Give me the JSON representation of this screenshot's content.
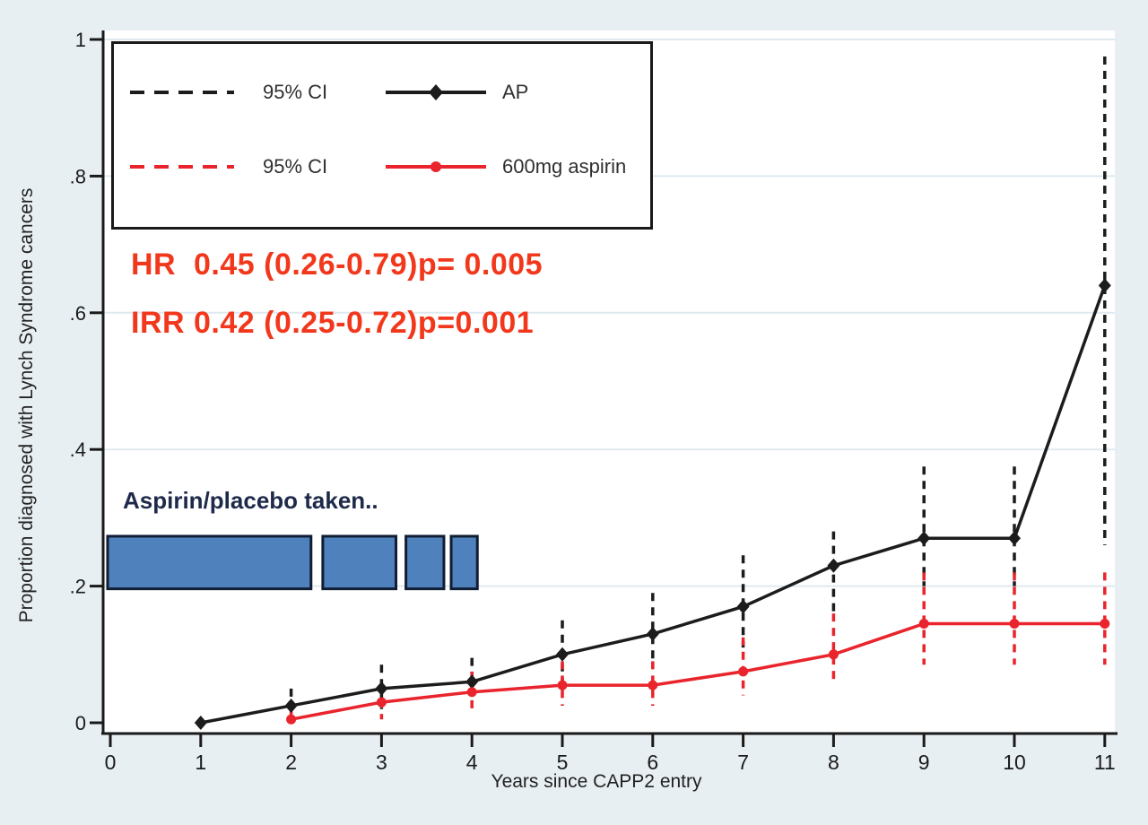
{
  "colors": {
    "background": "#e8eff2",
    "plot_bg": "#ffffff",
    "grid": "#dfeaf0",
    "axis": "#1a1a1a",
    "ap_series": "#1c1c1c",
    "aspirin_series": "#e9242c",
    "stats_text": "#f2381c",
    "bars_fill": "#4f81bd",
    "bars_stroke": "#111d33",
    "annotation_text": "#1e2a4a"
  },
  "legend": {
    "rows": [
      {
        "ci_label": "95% CI",
        "series_label": "AP"
      },
      {
        "ci_label": "95% CI",
        "series_label": "600mg aspirin"
      }
    ]
  },
  "annotations": {
    "stats_line1": "HR  0.45 (0.26-0.79)p= 0.005",
    "stats_line2": "IRR 0.42 (0.25-0.72)p=0.001",
    "treatment_label": "Aspirin/placebo taken.."
  },
  "chart_data": {
    "type": "line",
    "title": "",
    "xlabel": "Years since CAPP2 entry",
    "ylabel": "Proportion diagnosed with Lynch Syndrome cancers",
    "xlim": [
      0,
      11
    ],
    "ylim": [
      0,
      1
    ],
    "grid": "horizontal",
    "legend_position": "top-left",
    "x_ticks": [
      0,
      1,
      2,
      3,
      4,
      5,
      6,
      7,
      8,
      9,
      10,
      11
    ],
    "y_ticks": [
      {
        "v": 0.0,
        "label": "0"
      },
      {
        "v": 0.2,
        "label": ".2"
      },
      {
        "v": 0.4,
        "label": ".4"
      },
      {
        "v": 0.6,
        "label": ".6"
      },
      {
        "v": 0.8,
        "label": ".8"
      },
      {
        "v": 1.0,
        "label": "1"
      }
    ],
    "series": [
      {
        "name": "AP",
        "marker": "diamond",
        "color": "#1c1c1c",
        "ci_style": "dashed",
        "points": [
          {
            "x": 1,
            "y": 0.0
          },
          {
            "x": 2,
            "y": 0.025,
            "lo": 0.0,
            "hi": 0.05
          },
          {
            "x": 3,
            "y": 0.05,
            "lo": 0.02,
            "hi": 0.085
          },
          {
            "x": 4,
            "y": 0.06,
            "lo": 0.03,
            "hi": 0.095
          },
          {
            "x": 5,
            "y": 0.1,
            "lo": 0.055,
            "hi": 0.15
          },
          {
            "x": 6,
            "y": 0.13,
            "lo": 0.08,
            "hi": 0.19
          },
          {
            "x": 7,
            "y": 0.17,
            "lo": 0.11,
            "hi": 0.245
          },
          {
            "x": 8,
            "y": 0.23,
            "lo": 0.16,
            "hi": 0.28
          },
          {
            "x": 9,
            "y": 0.27,
            "lo": 0.2,
            "hi": 0.375
          },
          {
            "x": 10,
            "y": 0.27,
            "lo": 0.2,
            "hi": 0.375
          },
          {
            "x": 11,
            "y": 0.64,
            "lo": 0.26,
            "hi": 0.975
          }
        ]
      },
      {
        "name": "600mg aspirin",
        "marker": "circle",
        "color": "#e9242c",
        "ci_style": "dashed",
        "points": [
          {
            "x": 2,
            "y": 0.005,
            "lo": 0.0,
            "hi": 0.02
          },
          {
            "x": 3,
            "y": 0.03,
            "lo": 0.005,
            "hi": 0.055
          },
          {
            "x": 4,
            "y": 0.045,
            "lo": 0.015,
            "hi": 0.075
          },
          {
            "x": 5,
            "y": 0.055,
            "lo": 0.025,
            "hi": 0.09
          },
          {
            "x": 6,
            "y": 0.055,
            "lo": 0.025,
            "hi": 0.09
          },
          {
            "x": 7,
            "y": 0.075,
            "lo": 0.04,
            "hi": 0.125
          },
          {
            "x": 8,
            "y": 0.1,
            "lo": 0.06,
            "hi": 0.16
          },
          {
            "x": 9,
            "y": 0.145,
            "lo": 0.085,
            "hi": 0.22
          },
          {
            "x": 10,
            "y": 0.145,
            "lo": 0.085,
            "hi": 0.22
          },
          {
            "x": 11,
            "y": 0.145,
            "lo": 0.085,
            "hi": 0.22
          }
        ]
      }
    ],
    "treatment_bars": {
      "y_bottom": 0.196,
      "y_top": 0.273,
      "segments": [
        {
          "x0": -0.03,
          "x1": 2.22
        },
        {
          "x0": 2.35,
          "x1": 3.16
        },
        {
          "x0": 3.27,
          "x1": 3.69
        },
        {
          "x0": 3.77,
          "x1": 4.06
        }
      ]
    }
  }
}
